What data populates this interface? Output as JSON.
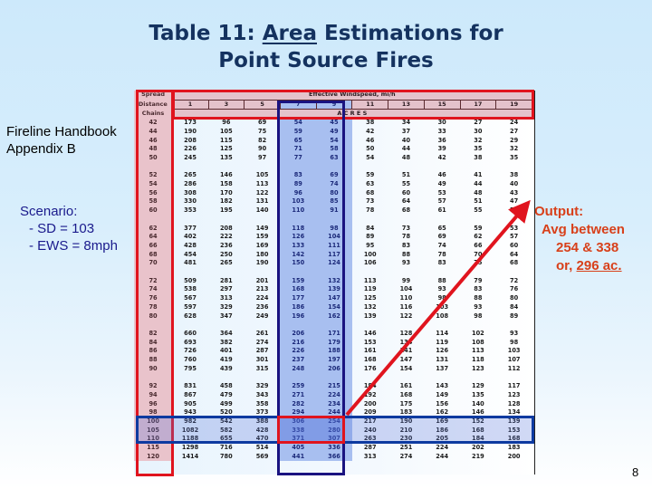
{
  "title": {
    "line1_prefix": "Table 11:  ",
    "line1_underlined": "Area",
    "line1_suffix": " Estimations for",
    "line2": "Point Source Fires"
  },
  "source_note": {
    "line1": "Fireline Handbook",
    "line2": "Appendix B"
  },
  "scenario": {
    "label": "Scenario:",
    "items": [
      "- SD = 103",
      "- EWS = 8mph"
    ]
  },
  "output": {
    "label": "Output:",
    "line2": "Avg between",
    "line3": "254 & 338",
    "line4_prefix": "or, ",
    "line4_underlined": "296 ac."
  },
  "page_number": "8",
  "colors": {
    "title": "#14325f",
    "output": "#d8401a",
    "scenario": "#1a1a8c",
    "highlight_red": "#e0141e",
    "highlight_blue": "#1a1380"
  },
  "table": {
    "row_header_label": [
      "Spread",
      "Distance",
      "Chains"
    ],
    "column_group_label": "Effective Windspeed, mi/h",
    "units_label": "A C R E S",
    "windspeeds": [
      "1",
      "3",
      "5",
      "7",
      "9",
      "11",
      "13",
      "15",
      "17",
      "19"
    ],
    "highlighted_columns": [
      "7",
      "9"
    ],
    "highlighted_rows": [
      "100",
      "105"
    ],
    "rows": [
      {
        "sd": "42",
        "values": [
          "173",
          "96",
          "69",
          "54",
          "45",
          "38",
          "34",
          "30",
          "27",
          "24"
        ]
      },
      {
        "sd": "44",
        "values": [
          "190",
          "105",
          "75",
          "59",
          "49",
          "42",
          "37",
          "33",
          "30",
          "27"
        ]
      },
      {
        "sd": "46",
        "values": [
          "208",
          "115",
          "82",
          "65",
          "54",
          "46",
          "40",
          "36",
          "32",
          "29"
        ]
      },
      {
        "sd": "48",
        "values": [
          "226",
          "125",
          "90",
          "71",
          "58",
          "50",
          "44",
          "39",
          "35",
          "32"
        ]
      },
      {
        "sd": "50",
        "values": [
          "245",
          "135",
          "97",
          "77",
          "63",
          "54",
          "48",
          "42",
          "38",
          "35"
        ]
      },
      {
        "sd": "52",
        "values": [
          "265",
          "146",
          "105",
          "83",
          "69",
          "59",
          "51",
          "46",
          "41",
          "38"
        ]
      },
      {
        "sd": "54",
        "values": [
          "286",
          "158",
          "113",
          "89",
          "74",
          "63",
          "55",
          "49",
          "44",
          "40"
        ]
      },
      {
        "sd": "56",
        "values": [
          "308",
          "170",
          "122",
          "96",
          "80",
          "68",
          "60",
          "53",
          "48",
          "43"
        ]
      },
      {
        "sd": "58",
        "values": [
          "330",
          "182",
          "131",
          "103",
          "85",
          "73",
          "64",
          "57",
          "51",
          "47"
        ]
      },
      {
        "sd": "60",
        "values": [
          "353",
          "195",
          "140",
          "110",
          "91",
          "78",
          "68",
          "61",
          "55",
          "50"
        ]
      },
      {
        "sd": "62",
        "values": [
          "377",
          "208",
          "149",
          "118",
          "98",
          "84",
          "73",
          "65",
          "59",
          "53"
        ]
      },
      {
        "sd": "64",
        "values": [
          "402",
          "222",
          "159",
          "126",
          "104",
          "89",
          "78",
          "69",
          "62",
          "57"
        ]
      },
      {
        "sd": "66",
        "values": [
          "428",
          "236",
          "169",
          "133",
          "111",
          "95",
          "83",
          "74",
          "66",
          "60"
        ]
      },
      {
        "sd": "68",
        "values": [
          "454",
          "250",
          "180",
          "142",
          "117",
          "100",
          "88",
          "78",
          "70",
          "64"
        ]
      },
      {
        "sd": "70",
        "values": [
          "481",
          "265",
          "190",
          "150",
          "124",
          "106",
          "93",
          "83",
          "75",
          "68"
        ]
      },
      {
        "sd": "72",
        "values": [
          "509",
          "281",
          "201",
          "159",
          "132",
          "113",
          "99",
          "88",
          "79",
          "72"
        ]
      },
      {
        "sd": "74",
        "values": [
          "538",
          "297",
          "213",
          "168",
          "139",
          "119",
          "104",
          "93",
          "83",
          "76"
        ]
      },
      {
        "sd": "76",
        "values": [
          "567",
          "313",
          "224",
          "177",
          "147",
          "125",
          "110",
          "98",
          "88",
          "80"
        ]
      },
      {
        "sd": "78",
        "values": [
          "597",
          "329",
          "236",
          "186",
          "154",
          "132",
          "116",
          "103",
          "93",
          "84"
        ]
      },
      {
        "sd": "80",
        "values": [
          "628",
          "347",
          "249",
          "196",
          "162",
          "139",
          "122",
          "108",
          "98",
          "89"
        ]
      },
      {
        "sd": "82",
        "values": [
          "660",
          "364",
          "261",
          "206",
          "171",
          "146",
          "128",
          "114",
          "102",
          "93"
        ]
      },
      {
        "sd": "84",
        "values": [
          "693",
          "382",
          "274",
          "216",
          "179",
          "153",
          "134",
          "119",
          "108",
          "98"
        ]
      },
      {
        "sd": "86",
        "values": [
          "726",
          "401",
          "287",
          "226",
          "188",
          "161",
          "141",
          "126",
          "113",
          "103"
        ]
      },
      {
        "sd": "88",
        "values": [
          "760",
          "419",
          "301",
          "237",
          "197",
          "168",
          "147",
          "131",
          "118",
          "107"
        ]
      },
      {
        "sd": "90",
        "values": [
          "795",
          "439",
          "315",
          "248",
          "206",
          "176",
          "154",
          "137",
          "123",
          "112"
        ]
      },
      {
        "sd": "92",
        "values": [
          "831",
          "458",
          "329",
          "259",
          "215",
          "184",
          "161",
          "143",
          "129",
          "117"
        ]
      },
      {
        "sd": "94",
        "values": [
          "867",
          "479",
          "343",
          "271",
          "224",
          "192",
          "168",
          "149",
          "135",
          "123"
        ]
      },
      {
        "sd": "96",
        "values": [
          "905",
          "499",
          "358",
          "282",
          "234",
          "200",
          "175",
          "156",
          "140",
          "128"
        ]
      },
      {
        "sd": "98",
        "values": [
          "943",
          "520",
          "373",
          "294",
          "244",
          "209",
          "183",
          "162",
          "146",
          "134"
        ]
      },
      {
        "sd": "100",
        "values": [
          "982",
          "542",
          "388",
          "306",
          "254",
          "217",
          "190",
          "169",
          "152",
          "139"
        ]
      },
      {
        "sd": "105",
        "values": [
          "1082",
          "582",
          "428",
          "338",
          "280",
          "240",
          "210",
          "186",
          "168",
          "153"
        ]
      },
      {
        "sd": "110",
        "values": [
          "1188",
          "655",
          "470",
          "371",
          "307",
          "263",
          "230",
          "205",
          "184",
          "168"
        ]
      },
      {
        "sd": "115",
        "values": [
          "1298",
          "716",
          "514",
          "405",
          "336",
          "287",
          "251",
          "224",
          "202",
          "183"
        ]
      },
      {
        "sd": "120",
        "values": [
          "1414",
          "780",
          "569",
          "441",
          "366",
          "313",
          "274",
          "244",
          "219",
          "200"
        ]
      }
    ]
  }
}
